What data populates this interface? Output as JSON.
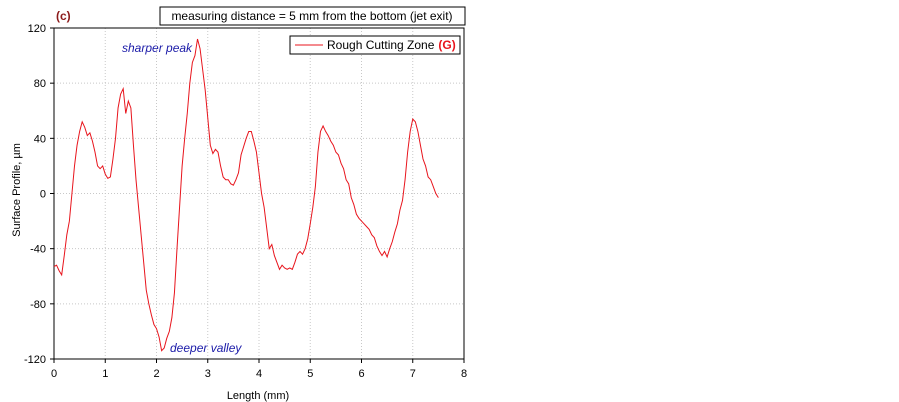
{
  "chart_data": {
    "type": "line",
    "panel_label": "(c)",
    "note": "measuring distance =  5 mm from the bottom (jet exit)",
    "x_label": "Length (mm)",
    "y_label": "Surface Profile, µm",
    "annotations": [
      "sharper peak",
      "deeper valley"
    ],
    "legend_tag": "(G)",
    "xlim": [
      0,
      8
    ],
    "xticks": [
      0,
      1,
      2,
      3,
      4,
      5,
      6,
      7,
      8
    ],
    "ylim": [
      -120,
      120
    ],
    "yticks": [
      -120,
      -80,
      -40,
      0,
      40,
      80,
      120
    ],
    "grid": true,
    "legend": "upper right",
    "x": [
      0,
      0.05,
      0.1,
      0.15,
      0.2,
      0.25,
      0.3,
      0.35,
      0.4,
      0.45,
      0.5,
      0.55,
      0.6,
      0.65,
      0.7,
      0.75,
      0.8,
      0.85,
      0.9,
      0.95,
      1,
      1.05,
      1.1,
      1.15,
      1.2,
      1.25,
      1.3,
      1.35,
      1.4,
      1.45,
      1.5,
      1.55,
      1.6,
      1.65,
      1.7,
      1.75,
      1.8,
      1.85,
      1.9,
      1.95,
      2,
      2.05,
      2.1,
      2.15,
      2.2,
      2.25,
      2.3,
      2.35,
      2.4,
      2.45,
      2.5,
      2.55,
      2.6,
      2.65,
      2.7,
      2.75,
      2.8,
      2.85,
      2.9,
      2.95,
      3,
      3.05,
      3.1,
      3.15,
      3.2,
      3.25,
      3.3,
      3.35,
      3.4,
      3.45,
      3.5,
      3.55,
      3.6,
      3.65,
      3.7,
      3.75,
      3.8,
      3.85,
      3.9,
      3.95,
      4,
      4.05,
      4.1,
      4.15,
      4.2,
      4.25,
      4.3,
      4.35,
      4.4,
      4.45,
      4.5,
      4.55,
      4.6,
      4.65,
      4.7,
      4.75,
      4.8,
      4.85,
      4.9,
      4.95,
      5,
      5.05,
      5.1,
      5.15,
      5.2,
      5.25,
      5.3,
      5.35,
      5.4,
      5.45,
      5.5,
      5.55,
      5.6,
      5.65,
      5.7,
      5.75,
      5.8,
      5.85,
      5.9,
      5.95,
      6,
      6.05,
      6.1,
      6.15,
      6.2,
      6.25,
      6.3,
      6.35,
      6.4,
      6.45,
      6.5,
      6.55,
      6.6,
      6.65,
      6.7,
      6.75,
      6.8,
      6.85,
      6.9,
      6.95,
      7,
      7.05,
      7.1,
      7.15,
      7.2,
      7.25,
      7.3,
      7.35,
      7.4,
      7.45,
      7.5
    ],
    "series": [
      {
        "name": "Rough Cutting Zone",
        "color": "#e8141c",
        "values": [
          -53,
          -52,
          -56,
          -59,
          -45,
          -30,
          -20,
          0,
          20,
          35,
          45,
          52,
          48,
          42,
          44,
          38,
          30,
          20,
          18,
          20,
          14,
          11,
          12,
          25,
          40,
          62,
          72,
          76,
          58,
          67,
          62,
          35,
          10,
          -10,
          -30,
          -50,
          -70,
          -80,
          -88,
          -95,
          -98,
          -104,
          -114,
          -112,
          -105,
          -100,
          -90,
          -72,
          -40,
          -10,
          20,
          40,
          58,
          80,
          95,
          100,
          112,
          105,
          90,
          75,
          55,
          35,
          29,
          32,
          30,
          20,
          12,
          10,
          10,
          7,
          6,
          10,
          15,
          28,
          34,
          40,
          45,
          45,
          38,
          30,
          15,
          0,
          -10,
          -25,
          -40,
          -37,
          -45,
          -50,
          -55,
          -52,
          -54,
          -55,
          -54,
          -55,
          -50,
          -44,
          -42,
          -44,
          -40,
          -33,
          -22,
          -10,
          5,
          30,
          45,
          49,
          45,
          42,
          38,
          35,
          30,
          28,
          22,
          18,
          10,
          7,
          -3,
          -8,
          -15,
          -18,
          -20,
          -22,
          -24,
          -26,
          -30,
          -32,
          -38,
          -42,
          -45,
          -42,
          -46,
          -40,
          -35,
          -28,
          -22,
          -12,
          -5,
          10,
          30,
          45,
          54,
          52,
          45,
          35,
          25,
          20,
          12,
          10,
          5,
          0,
          -3
        ]
      }
    ]
  }
}
